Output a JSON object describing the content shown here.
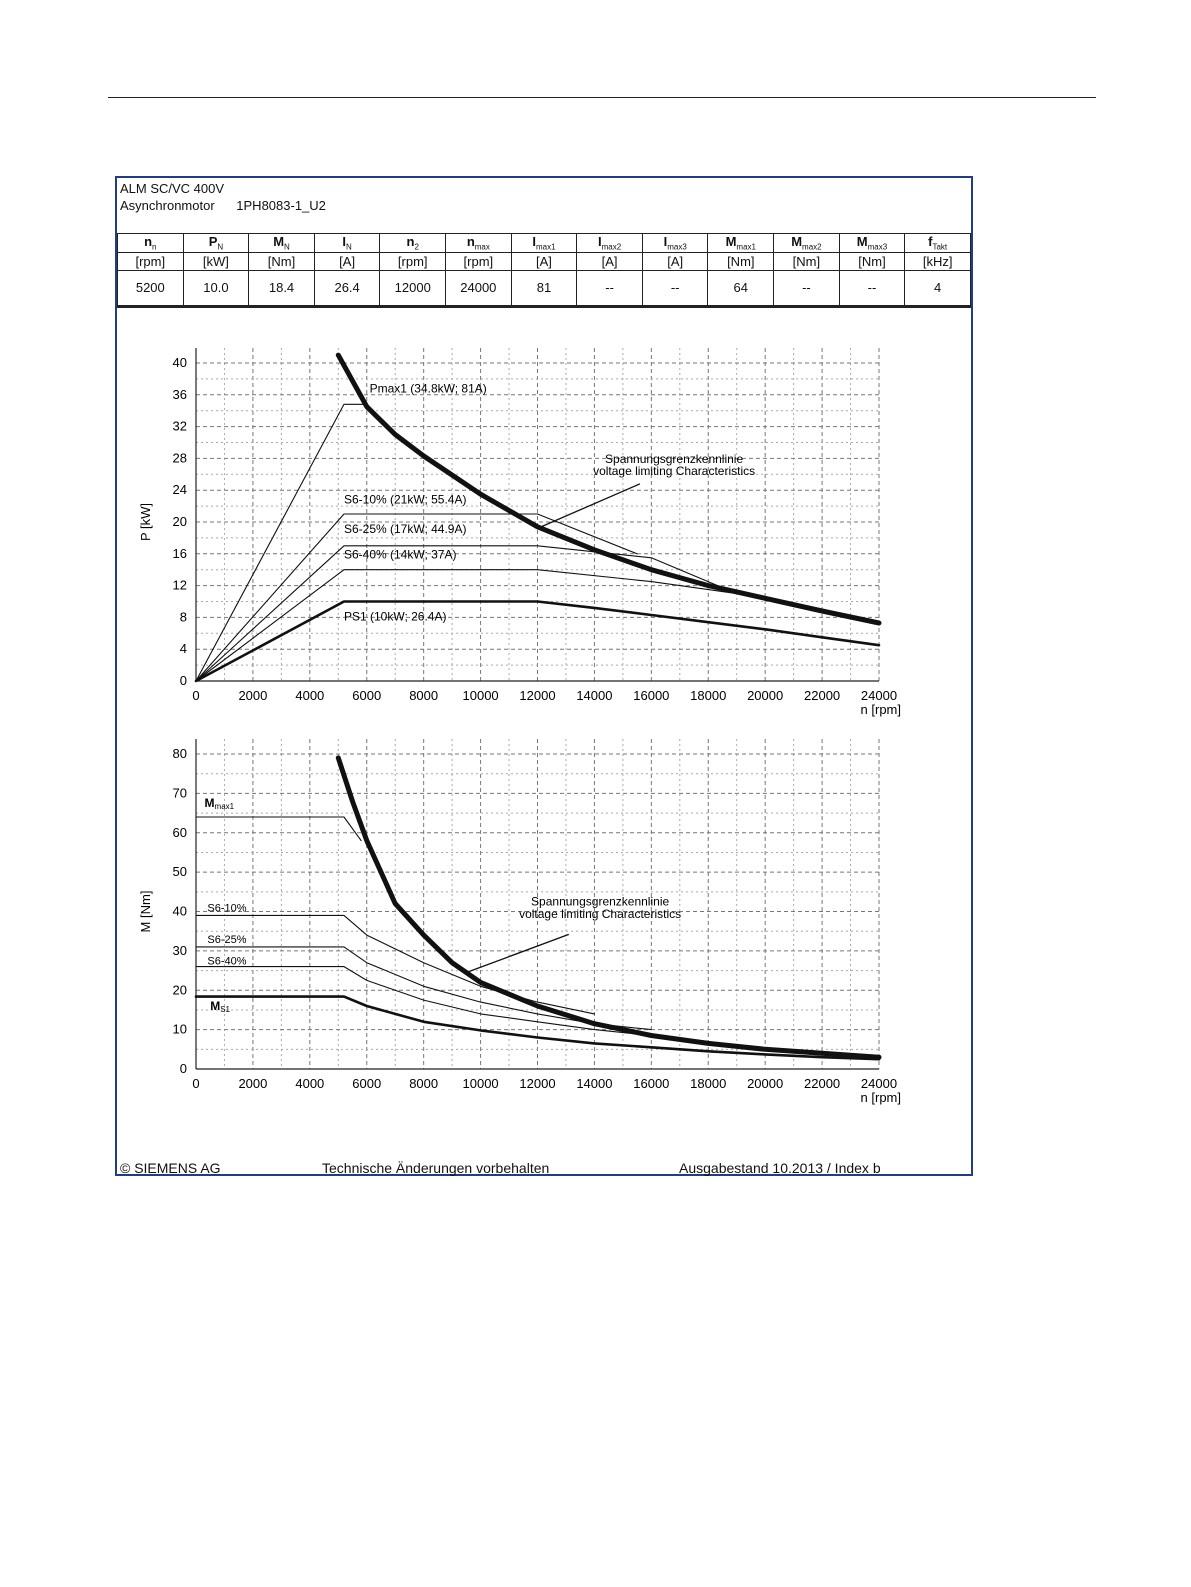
{
  "header": {
    "line1": "ALM SC/VC 400V",
    "motor_type": "Asynchronmotor",
    "model": "1PH8083-1_U2"
  },
  "spec_table": {
    "columns": [
      {
        "sym": "n",
        "sub": "n",
        "unit": "[rpm]",
        "value": "5200"
      },
      {
        "sym": "P",
        "sub": "N",
        "unit": "[kW]",
        "value": "10.0"
      },
      {
        "sym": "M",
        "sub": "N",
        "unit": "[Nm]",
        "value": "18.4"
      },
      {
        "sym": "I",
        "sub": "N",
        "unit": "[A]",
        "value": "26.4"
      },
      {
        "sym": "n",
        "sub": "2",
        "unit": "[rpm]",
        "value": "12000"
      },
      {
        "sym": "n",
        "sub": "max",
        "unit": "[rpm]",
        "value": "24000"
      },
      {
        "sym": "I",
        "sub": "max1",
        "unit": "[A]",
        "value": "81"
      },
      {
        "sym": "I",
        "sub": "max2",
        "unit": "[A]",
        "value": "--"
      },
      {
        "sym": "I",
        "sub": "max3",
        "unit": "[A]",
        "value": "--"
      },
      {
        "sym": "M",
        "sub": "max1",
        "unit": "[Nm]",
        "value": "64"
      },
      {
        "sym": "M",
        "sub": "max2",
        "unit": "[Nm]",
        "value": "--"
      },
      {
        "sym": "M",
        "sub": "max3",
        "unit": "[Nm]",
        "value": "--"
      },
      {
        "sym": "f",
        "sub": "Takt",
        "unit": "[kHz]",
        "value": "4"
      }
    ]
  },
  "chart_data": [
    {
      "type": "line",
      "xlabel": "n [rpm]",
      "ylabel": "P [kW]",
      "xlim": [
        0,
        24000
      ],
      "ylim": [
        0,
        40
      ],
      "x_ticks": [
        0,
        2000,
        4000,
        6000,
        8000,
        10000,
        12000,
        14000,
        16000,
        18000,
        20000,
        22000,
        24000
      ],
      "y_ticks": [
        0,
        4,
        8,
        12,
        16,
        20,
        24,
        28,
        32,
        36,
        40
      ],
      "grid": true,
      "annotation": {
        "line1": "Spannungsgrenzkennlinie",
        "line2": "voltage limiting  Characteristics"
      },
      "series": [
        {
          "name": "Pmax1 (34.8kW; 81A)",
          "points": [
            [
              0,
              0
            ],
            [
              5200,
              34.8
            ],
            [
              6000,
              34.8
            ]
          ],
          "weight": "thin"
        },
        {
          "name": "S6-10% (21kW; 55.4A)",
          "points": [
            [
              0,
              0
            ],
            [
              5200,
              21
            ],
            [
              12000,
              21
            ],
            [
              15500,
              16
            ]
          ],
          "weight": "thin"
        },
        {
          "name": "S6-25% (17kW; 44.9A)",
          "points": [
            [
              0,
              0
            ],
            [
              5200,
              17
            ],
            [
              12000,
              17
            ],
            [
              16000,
              15.5
            ],
            [
              19000,
              11
            ]
          ],
          "weight": "thin"
        },
        {
          "name": "S6-40% (14kW; 37A)",
          "points": [
            [
              0,
              0
            ],
            [
              5200,
              14
            ],
            [
              12000,
              14
            ],
            [
              16000,
              12.5
            ],
            [
              19000,
              11
            ]
          ],
          "weight": "thin"
        },
        {
          "name": "PS1 (10kW; 26.4A)",
          "points": [
            [
              0,
              0
            ],
            [
              5200,
              10
            ],
            [
              12000,
              10
            ],
            [
              14000,
              9.2
            ],
            [
              16000,
              8.3
            ],
            [
              18000,
              7.4
            ],
            [
              20000,
              6.5
            ],
            [
              22000,
              5.5
            ],
            [
              24000,
              4.5
            ]
          ],
          "weight": "bold"
        },
        {
          "name": "",
          "points": [
            [
              5000,
              41
            ],
            [
              6000,
              34.5
            ],
            [
              7000,
              31
            ],
            [
              8000,
              28.3
            ],
            [
              10000,
              23.5
            ],
            [
              12000,
              19.4
            ],
            [
              14000,
              16.5
            ],
            [
              16000,
              14
            ],
            [
              18000,
              12
            ],
            [
              20000,
              10.4
            ],
            [
              22000,
              8.8
            ],
            [
              24000,
              7.3
            ]
          ],
          "weight": "heavy"
        }
      ]
    },
    {
      "type": "line",
      "xlabel": "n [rpm]",
      "ylabel": "M [Nm]",
      "xlim": [
        0,
        24000
      ],
      "ylim": [
        0,
        80
      ],
      "x_ticks": [
        0,
        2000,
        4000,
        6000,
        8000,
        10000,
        12000,
        14000,
        16000,
        18000,
        20000,
        22000,
        24000
      ],
      "y_ticks": [
        0,
        10,
        20,
        30,
        40,
        50,
        60,
        70,
        80
      ],
      "grid": true,
      "annotation": {
        "line1": "Spannungsgrenzkennlinie",
        "line2": "voltage limiting  Characteristics"
      },
      "series": [
        {
          "name": "Mmax1",
          "points": [
            [
              0,
              64
            ],
            [
              5200,
              64
            ],
            [
              5800,
              58
            ]
          ],
          "weight": "thin"
        },
        {
          "name": "S6-10%",
          "points": [
            [
              0,
              39
            ],
            [
              5200,
              39
            ],
            [
              6000,
              34
            ],
            [
              8000,
              27
            ],
            [
              10000,
              21
            ],
            [
              12000,
              17
            ],
            [
              14000,
              14
            ]
          ],
          "weight": "thin"
        },
        {
          "name": "S6-25%",
          "points": [
            [
              0,
              31
            ],
            [
              5200,
              31
            ],
            [
              6000,
              27
            ],
            [
              8000,
              21
            ],
            [
              10000,
              17
            ],
            [
              12000,
              14
            ],
            [
              14000,
              11.5
            ],
            [
              16000,
              10
            ]
          ],
          "weight": "thin"
        },
        {
          "name": "S6-40%",
          "points": [
            [
              0,
              26
            ],
            [
              5200,
              26
            ],
            [
              6000,
              22.5
            ],
            [
              8000,
              17.5
            ],
            [
              10000,
              14
            ],
            [
              12000,
              12
            ],
            [
              14000,
              10
            ],
            [
              16000,
              8.5
            ],
            [
              18000,
              7
            ]
          ],
          "weight": "thin"
        },
        {
          "name": "MS1",
          "points": [
            [
              0,
              18.4
            ],
            [
              5200,
              18.4
            ],
            [
              6000,
              16
            ],
            [
              8000,
              12
            ],
            [
              10000,
              9.8
            ],
            [
              12000,
              8
            ],
            [
              14000,
              6.5
            ],
            [
              16000,
              5.5
            ],
            [
              18000,
              4.5
            ],
            [
              20000,
              3.7
            ],
            [
              22000,
              3
            ],
            [
              24000,
              2.5
            ]
          ],
          "weight": "bold"
        },
        {
          "name": "",
          "points": [
            [
              5000,
              79
            ],
            [
              5500,
              68
            ],
            [
              6000,
              58
            ],
            [
              7000,
              42
            ],
            [
              8000,
              34
            ],
            [
              9000,
              27
            ],
            [
              10000,
              22
            ],
            [
              12000,
              16
            ],
            [
              14000,
              11.5
            ],
            [
              16000,
              8.5
            ],
            [
              18000,
              6.5
            ],
            [
              20000,
              5
            ],
            [
              22000,
              4
            ],
            [
              24000,
              3
            ]
          ],
          "weight": "heavy"
        }
      ]
    }
  ],
  "labels": {
    "p_chart": {
      "pmax": "Pmax1 (34.8kW; 81A)",
      "s610": "S6-10% (21kW; 55.4A)",
      "s625": "S6-25% (17kW; 44.9A)",
      "s640": "S6-40% (14kW; 37A)",
      "ps1": "PS1 (10kW; 26.4A)"
    },
    "m_chart": {
      "mmax": "M",
      "mmax_sub": "max1",
      "s610": "S6-10%",
      "s625": "S6-25%",
      "s640": "S6-40%",
      "ms1": "M",
      "ms1_sub": "S1"
    }
  },
  "footer": {
    "left": "© SIEMENS AG",
    "center": "Technische Änderungen vorbehalten",
    "right": "Ausgabestand 10.2013 / Index b"
  }
}
